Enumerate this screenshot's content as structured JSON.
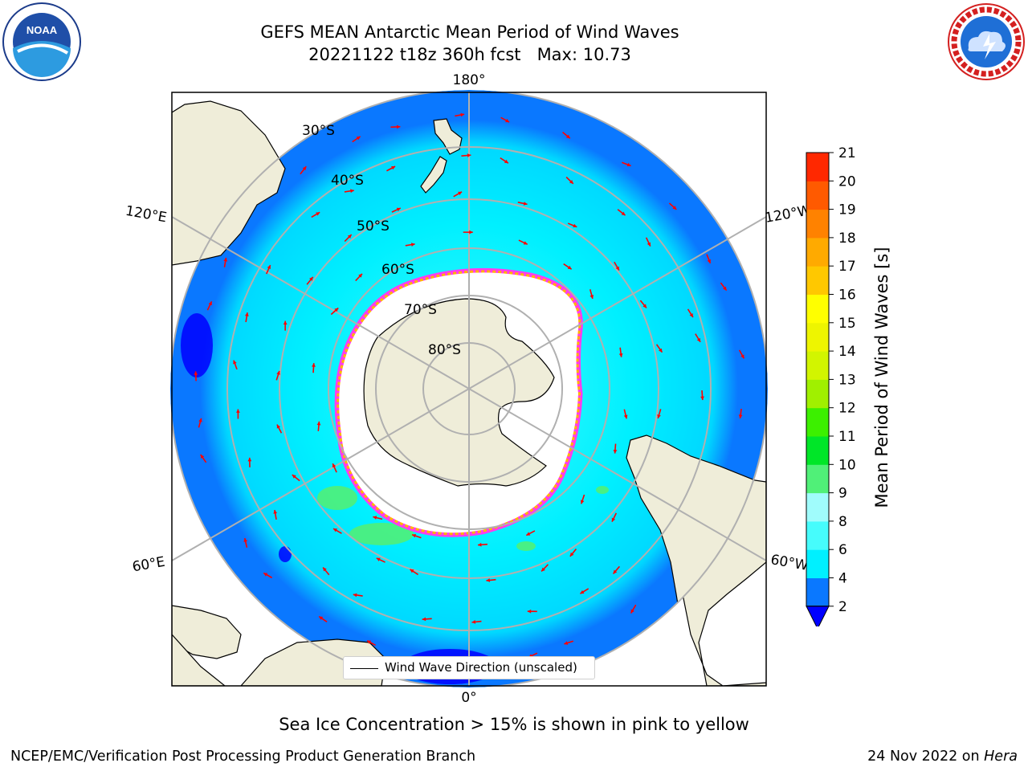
{
  "header": {
    "title_line1": "GEFS MEAN Antarctic Mean Period of Wind Waves",
    "title_line2": "20221122 t18z 360h fcst   Max: 10.73"
  },
  "logos": {
    "noaa_text": "NOAA",
    "nws_text": "NATIONAL WEATHER SERVICE"
  },
  "map": {
    "latitude_labels": [
      "30°S",
      "40°S",
      "50°S",
      "60°S",
      "70°S",
      "80°S"
    ],
    "longitude_labels": {
      "top": "180°",
      "bottom": "0°",
      "left_upper": "120°E",
      "left_lower": "60°E",
      "right_upper": "120°W",
      "right_lower": "60°W"
    },
    "colors": {
      "land": "#efedd9",
      "antarctica_ice": "#ffffff",
      "sea_ice_edge": [
        "#ff3cf0",
        "#ffb400",
        "#ffe800"
      ]
    }
  },
  "legend": {
    "label": "Wind Wave Direction (unscaled)"
  },
  "colorbar": {
    "label": "Mean Period of Wind Waves [s]",
    "ticks": [
      "2",
      "4",
      "6",
      "8",
      "9",
      "10",
      "11",
      "12",
      "13",
      "14",
      "15",
      "16",
      "17",
      "18",
      "19",
      "20",
      "21"
    ],
    "bins": [
      {
        "from": 2,
        "to": 4,
        "color": "#0a78ff"
      },
      {
        "from": 4,
        "to": 6,
        "color": "#00f0ff"
      },
      {
        "from": 6,
        "to": 8,
        "color": "#46fcfc"
      },
      {
        "from": 8,
        "to": 9,
        "color": "#a0fcfc"
      },
      {
        "from": 9,
        "to": 10,
        "color": "#50f078"
      },
      {
        "from": 10,
        "to": 11,
        "color": "#00e628"
      },
      {
        "from": 11,
        "to": 12,
        "color": "#3cf000"
      },
      {
        "from": 12,
        "to": 13,
        "color": "#a0f000"
      },
      {
        "from": 13,
        "to": 14,
        "color": "#d2f500"
      },
      {
        "from": 14,
        "to": 15,
        "color": "#eef500"
      },
      {
        "from": 15,
        "to": 16,
        "color": "#ffff00"
      },
      {
        "from": 16,
        "to": 17,
        "color": "#ffc800"
      },
      {
        "from": 17,
        "to": 18,
        "color": "#ffaa00"
      },
      {
        "from": 18,
        "to": 19,
        "color": "#ff8200"
      },
      {
        "from": 19,
        "to": 20,
        "color": "#ff5a00"
      },
      {
        "from": 20,
        "to": 21,
        "color": "#ff2800"
      }
    ],
    "extend_low_color": "#0000ff"
  },
  "footer": {
    "subcaption": "Sea Ice Concentration > 15% is shown in pink to yellow",
    "left": "NCEP/EMC/Verification Post Processing Product Generation Branch",
    "right_prefix": "24 Nov 2022 on ",
    "right_host": "Hera"
  }
}
